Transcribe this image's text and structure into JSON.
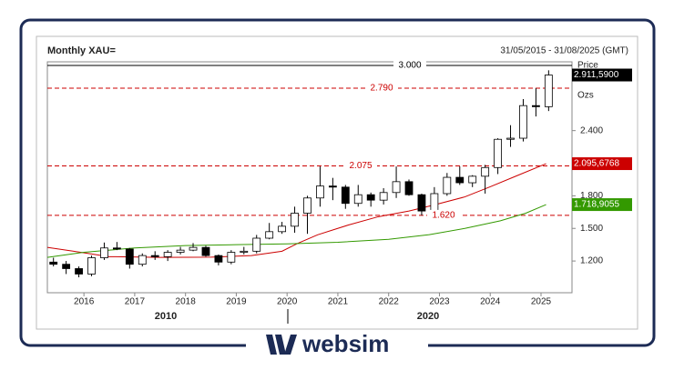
{
  "chart_data": {
    "type": "candlestick",
    "title": "Monthly XAU=",
    "subtitle": "31/05/2015 - 31/08/2025 (GMT)",
    "y_axis_label": "Price",
    "y_axis_unit": "Ozs",
    "x": [
      2015.4,
      2015.65,
      2015.9,
      2016.15,
      2016.4,
      2016.65,
      2016.9,
      2017.15,
      2017.4,
      2017.65,
      2017.9,
      2018.15,
      2018.4,
      2018.65,
      2018.9,
      2019.15,
      2019.4,
      2019.65,
      2019.9,
      2020.15,
      2020.4,
      2020.65,
      2020.9,
      2021.15,
      2021.4,
      2021.65,
      2021.9,
      2022.15,
      2022.4,
      2022.65,
      2022.9,
      2023.15,
      2023.4,
      2023.65,
      2023.9,
      2024.15,
      2024.4,
      2024.65,
      2024.9,
      2025.15
    ],
    "open": [
      1190,
      1170,
      1130,
      1080,
      1230,
      1320,
      1310,
      1170,
      1250,
      1240,
      1280,
      1300,
      1325,
      1250,
      1190,
      1280,
      1290,
      1410,
      1470,
      1520,
      1640,
      1780,
      1890,
      1880,
      1730,
      1810,
      1760,
      1830,
      1930,
      1810,
      1660,
      1820,
      1970,
      1920,
      1980,
      2060,
      2320,
      2330,
      2630,
      2620
    ],
    "high": [
      1230,
      1200,
      1150,
      1250,
      1370,
      1375,
      1320,
      1270,
      1290,
      1300,
      1330,
      1365,
      1340,
      1260,
      1300,
      1330,
      1440,
      1550,
      1560,
      1700,
      1800,
      2070,
      1965,
      1900,
      1900,
      1830,
      1870,
      2070,
      1950,
      1820,
      1880,
      2010,
      2070,
      1990,
      2085,
      2330,
      2450,
      2690,
      2790,
      2955
    ],
    "low": [
      1150,
      1080,
      1050,
      1060,
      1210,
      1300,
      1130,
      1150,
      1210,
      1200,
      1260,
      1290,
      1240,
      1160,
      1170,
      1260,
      1270,
      1400,
      1450,
      1460,
      1450,
      1700,
      1760,
      1680,
      1700,
      1700,
      1720,
      1780,
      1800,
      1620,
      1610,
      1800,
      1900,
      1880,
      1820,
      2000,
      2250,
      2300,
      2530,
      2580
    ],
    "close": [
      1170,
      1130,
      1080,
      1230,
      1320,
      1310,
      1170,
      1250,
      1240,
      1280,
      1300,
      1325,
      1250,
      1190,
      1280,
      1290,
      1410,
      1470,
      1520,
      1640,
      1780,
      1890,
      1880,
      1730,
      1810,
      1760,
      1830,
      1930,
      1810,
      1660,
      1820,
      1970,
      1920,
      1980,
      2060,
      2320,
      2330,
      2630,
      2620,
      2911.59
    ],
    "last_close": {
      "value": 2911.59,
      "label": "2.911,5900"
    },
    "up_color": "#ffffff",
    "down_color": "#000000",
    "series": [
      {
        "color": "#cc0000",
        "x": [
          2015.28,
          2015.8,
          2016.5,
          2017.5,
          2018.5,
          2019.3,
          2019.9,
          2020.2,
          2020.6,
          2021.2,
          2021.8,
          2022.4,
          2022.9,
          2023.5,
          2024.0,
          2024.5,
          2025.1
        ],
        "values": [
          1325,
          1290,
          1240,
          1233,
          1235,
          1250,
          1290,
          1360,
          1441,
          1530,
          1608,
          1660,
          1716,
          1790,
          1883,
          1980,
          2095.6768
        ],
        "last": {
          "value": 2095.6768,
          "label": "2.095,6768"
        }
      },
      {
        "color": "#339900",
        "x": [
          2015.28,
          2016.0,
          2017.0,
          2018.0,
          2019.0,
          2020.0,
          2021.0,
          2022.0,
          2022.8,
          2023.5,
          2024.2,
          2024.7,
          2025.1
        ],
        "values": [
          1233,
          1280,
          1320,
          1342,
          1350,
          1358,
          1372,
          1400,
          1442,
          1500,
          1570,
          1640,
          1718.9055
        ],
        "last": {
          "value": 1718.9055,
          "label": "1.718,9055"
        }
      }
    ],
    "levels": [
      {
        "value": 3000,
        "label": "3.000",
        "color": "#000000",
        "dashed": false
      },
      {
        "value": 2790,
        "label": "2.790",
        "color": "#cc0000",
        "dashed": true
      },
      {
        "value": 2075,
        "label": "2.075",
        "color": "#cc0000",
        "dashed": true
      },
      {
        "value": 1620,
        "label": "1.620",
        "color": "#cc0000",
        "dashed": true
      }
    ],
    "xlim": [
      2015.28,
      2025.61
    ],
    "xticks": [
      2016,
      2017,
      2018,
      2019,
      2020,
      2021,
      2022,
      2023,
      2024,
      2025
    ],
    "decade_labels": [
      "2010",
      "2020"
    ],
    "ylim": [
      908,
      3033
    ],
    "yticks": [
      {
        "value": 1200,
        "label": "1.200"
      },
      {
        "value": 1500,
        "label": "1.500"
      },
      {
        "value": 1800,
        "label": "1.800"
      },
      {
        "value": 2400,
        "label": "2.400"
      }
    ]
  },
  "brand": "websim"
}
